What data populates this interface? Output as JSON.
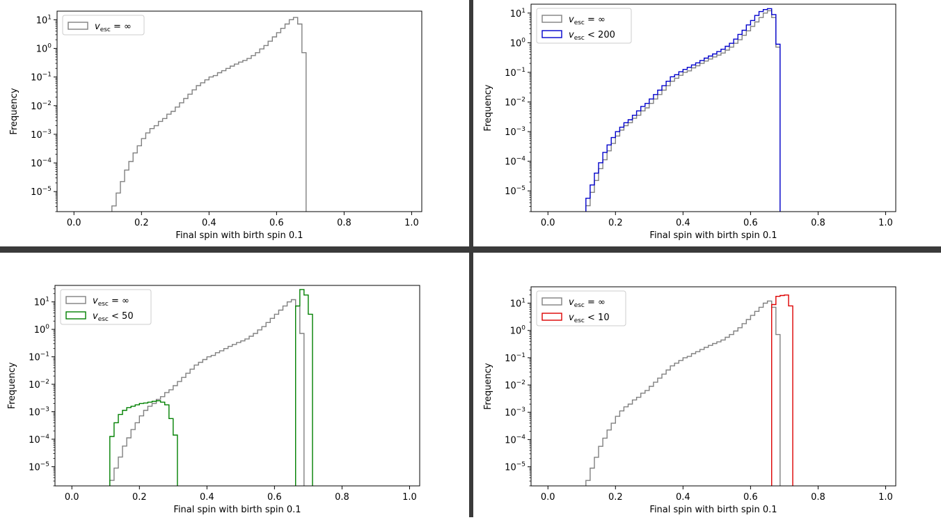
{
  "figure": {
    "divider_color": "#3a3a3a"
  },
  "chart_data": [
    {
      "type": "histogram-step",
      "panel": "top-left",
      "title": "",
      "xlabel": "Final spin with birth spin 0.1",
      "ylabel": "Frequency",
      "xlim": [
        -0.05,
        1.03
      ],
      "ylim_log10": [
        -5.7,
        1.3
      ],
      "xticks": [
        0.0,
        0.2,
        0.4,
        0.6,
        0.8,
        1.0
      ],
      "xtick_labels": [
        "0.0",
        "0.2",
        "0.4",
        "0.6",
        "0.8",
        "1.0"
      ],
      "ytick_exponents": [
        -5,
        -4,
        -3,
        -2,
        -1,
        0,
        1
      ],
      "ytick_labels": [
        {
          "base": "10",
          "exp": "−5"
        },
        {
          "base": "10",
          "exp": "−4"
        },
        {
          "base": "10",
          "exp": "−3"
        },
        {
          "base": "10",
          "exp": "−2"
        },
        {
          "base": "10",
          "exp": "−1"
        },
        {
          "base": "10",
          "exp": "0"
        },
        {
          "base": "10",
          "exp": "1"
        }
      ],
      "legend_position": "upper-left",
      "series": [
        {
          "name": "v_esc = ∞",
          "label_main": "v",
          "label_sub": "esc",
          "label_rest": " = ∞",
          "color": "#808080",
          "series_ref": "full"
        }
      ]
    },
    {
      "type": "histogram-step",
      "panel": "top-right",
      "title": "",
      "xlabel": "Final spin with birth spin 0.1",
      "ylabel": "Frequency",
      "xlim": [
        -0.05,
        1.03
      ],
      "ylim_log10": [
        -5.7,
        1.3
      ],
      "xticks": [
        0.0,
        0.2,
        0.4,
        0.6,
        0.8,
        1.0
      ],
      "xtick_labels": [
        "0.0",
        "0.2",
        "0.4",
        "0.6",
        "0.8",
        "1.0"
      ],
      "ytick_exponents": [
        -5,
        -4,
        -3,
        -2,
        -1,
        0,
        1
      ],
      "ytick_labels": [
        {
          "base": "10",
          "exp": "−5"
        },
        {
          "base": "10",
          "exp": "−4"
        },
        {
          "base": "10",
          "exp": "−3"
        },
        {
          "base": "10",
          "exp": "−2"
        },
        {
          "base": "10",
          "exp": "−1"
        },
        {
          "base": "10",
          "exp": "0"
        },
        {
          "base": "10",
          "exp": "1"
        }
      ],
      "legend_position": "upper-left",
      "series": [
        {
          "name": "v_esc = ∞",
          "label_main": "v",
          "label_sub": "esc",
          "label_rest": " = ∞",
          "color": "#808080",
          "series_ref": "full"
        },
        {
          "name": "v_esc < 200",
          "label_main": "v",
          "label_sub": "esc",
          "label_rest": " < 200",
          "color": "#0000cc",
          "series_ref": "v200"
        }
      ]
    },
    {
      "type": "histogram-step",
      "panel": "bottom-left",
      "title": "",
      "xlabel": "Final spin with birth spin 0.1",
      "ylabel": "Frequency",
      "xlim": [
        -0.05,
        1.03
      ],
      "ylim_log10": [
        -5.7,
        1.6
      ],
      "xticks": [
        0.0,
        0.2,
        0.4,
        0.6,
        0.8,
        1.0
      ],
      "xtick_labels": [
        "0.0",
        "0.2",
        "0.4",
        "0.6",
        "0.8",
        "1.0"
      ],
      "ytick_exponents": [
        -5,
        -4,
        -3,
        -2,
        -1,
        0,
        1
      ],
      "ytick_labels": [
        {
          "base": "10",
          "exp": "−5"
        },
        {
          "base": "10",
          "exp": "−4"
        },
        {
          "base": "10",
          "exp": "−3"
        },
        {
          "base": "10",
          "exp": "−2"
        },
        {
          "base": "10",
          "exp": "−1"
        },
        {
          "base": "10",
          "exp": "0"
        },
        {
          "base": "10",
          "exp": "1"
        }
      ],
      "legend_position": "upper-left",
      "series": [
        {
          "name": "v_esc = ∞",
          "label_main": "v",
          "label_sub": "esc",
          "label_rest": " = ∞",
          "color": "#808080",
          "series_ref": "full"
        },
        {
          "name": "v_esc < 50",
          "label_main": "v",
          "label_sub": "esc",
          "label_rest": " < 50",
          "color": "#008000",
          "series_ref": "v50"
        }
      ]
    },
    {
      "type": "histogram-step",
      "panel": "bottom-right",
      "title": "",
      "xlabel": "Final spin with birth spin 0.1",
      "ylabel": "Frequency",
      "xlim": [
        -0.05,
        1.03
      ],
      "ylim_log10": [
        -5.7,
        1.6
      ],
      "xticks": [
        0.0,
        0.2,
        0.4,
        0.6,
        0.8,
        1.0
      ],
      "xtick_labels": [
        "0.0",
        "0.2",
        "0.4",
        "0.6",
        "0.8",
        "1.0"
      ],
      "ytick_exponents": [
        -5,
        -4,
        -3,
        -2,
        -1,
        0,
        1
      ],
      "ytick_labels": [
        {
          "base": "10",
          "exp": "−5"
        },
        {
          "base": "10",
          "exp": "−4"
        },
        {
          "base": "10",
          "exp": "−3"
        },
        {
          "base": "10",
          "exp": "−2"
        },
        {
          "base": "10",
          "exp": "−1"
        },
        {
          "base": "10",
          "exp": "0"
        },
        {
          "base": "10",
          "exp": "1"
        }
      ],
      "legend_position": "upper-left",
      "series": [
        {
          "name": "v_esc = ∞",
          "label_main": "v",
          "label_sub": "esc",
          "label_rest": " = ∞",
          "color": "#808080",
          "series_ref": "full"
        },
        {
          "name": "v_esc < 10",
          "label_main": "v",
          "label_sub": "esc",
          "label_rest": " < 10",
          "color": "#dd0000",
          "series_ref": "v10"
        }
      ]
    }
  ],
  "histograms": {
    "bin_width": 0.0125,
    "full": {
      "start": 0.1125,
      "log10_values": [
        -5.5,
        -5.05,
        -4.65,
        -4.25,
        -3.95,
        -3.65,
        -3.4,
        -3.15,
        -2.95,
        -2.8,
        -2.7,
        -2.55,
        -2.45,
        -2.3,
        -2.2,
        -2.05,
        -1.9,
        -1.75,
        -1.6,
        -1.45,
        -1.3,
        -1.2,
        -1.1,
        -1.0,
        -0.95,
        -0.85,
        -0.78,
        -0.7,
        -0.62,
        -0.55,
        -0.48,
        -0.42,
        -0.35,
        -0.25,
        -0.15,
        -0.02,
        0.1,
        0.25,
        0.4,
        0.55,
        0.7,
        0.85,
        1.0,
        1.08,
        0.85,
        -0.15
      ]
    },
    "v200": {
      "start": 0.1125,
      "log10_values": [
        -5.25,
        -4.8,
        -4.4,
        -4.05,
        -3.7,
        -3.45,
        -3.2,
        -3.0,
        -2.85,
        -2.7,
        -2.6,
        -2.45,
        -2.3,
        -2.15,
        -2.05,
        -1.9,
        -1.75,
        -1.6,
        -1.45,
        -1.3,
        -1.15,
        -1.08,
        -0.98,
        -0.9,
        -0.83,
        -0.75,
        -0.68,
        -0.6,
        -0.52,
        -0.45,
        -0.38,
        -0.3,
        -0.22,
        -0.12,
        -0.02,
        0.12,
        0.28,
        0.42,
        0.6,
        0.75,
        0.92,
        1.05,
        1.12,
        1.15,
        0.95,
        -0.05
      ]
    },
    "v50": {
      "segments": [
        {
          "start": 0.1125,
          "log10_values": [
            -3.9,
            -3.4,
            -3.1,
            -2.95,
            -2.85,
            -2.8,
            -2.75,
            -2.7,
            -2.68,
            -2.65,
            -2.62,
            -2.6,
            -2.65,
            -2.75,
            -3.25,
            -3.85
          ]
        },
        {
          "start": 0.6625,
          "log10_values": [
            0.85,
            1.45,
            1.25,
            0.55
          ]
        }
      ]
    },
    "v10": {
      "segments": [
        {
          "start": 0.6625,
          "log10_values": [
            0.95,
            1.25,
            1.28,
            1.3,
            0.9
          ]
        }
      ]
    }
  }
}
